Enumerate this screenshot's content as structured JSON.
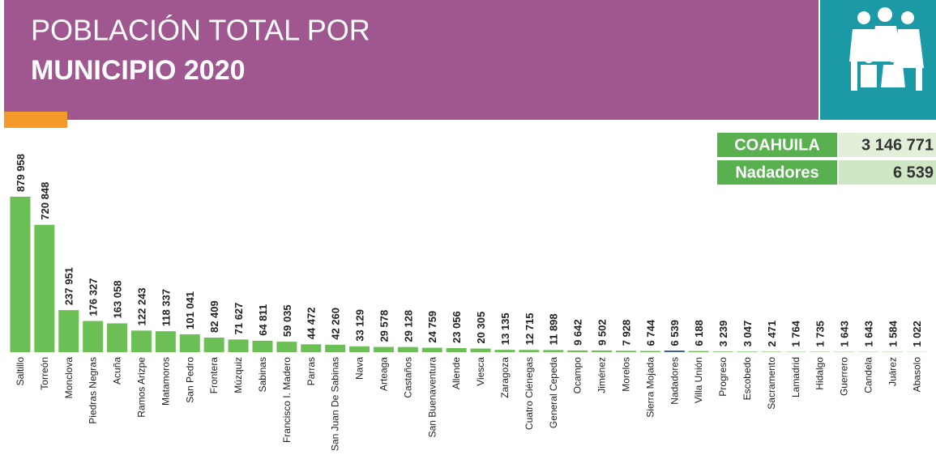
{
  "chart_data": {
    "type": "bar",
    "title": "POBLACIÓN TOTAL POR",
    "subtitle": "MUNICIPIO 2020",
    "summary": [
      {
        "label": "COAHUILA",
        "value": "3 146 771"
      },
      {
        "label": "Nadadores",
        "value": "6 539"
      }
    ],
    "highlight": "Nadadores",
    "color": "#6cbf55",
    "highlight_color": "#3b5ea6",
    "categories": [
      "Saltillo",
      "Torreón",
      "Monclova",
      "Piedras Negras",
      "Acuña",
      "Ramos Arizpe",
      "Matamoros",
      "San Pedro",
      "Frontera",
      "Múzquiz",
      "Sabinas",
      "Francisco I. Madero",
      "Parras",
      "San Juan De Sabinas",
      "Nava",
      "Arteaga",
      "Castaños",
      "San Buenaventura",
      "Allende",
      "Viesca",
      "Zaragoza",
      "Cuatro Ciénegas",
      "General Cepeda",
      "Ocampo",
      "Jiménez",
      "Morelos",
      "Sierra Mojada",
      "Nadadores",
      "Villa Unión",
      "Progreso",
      "Escobedo",
      "Sacramento",
      "Lamadrid",
      "Hidalgo",
      "Guerrero",
      "Candela",
      "Juárez",
      "Abasolo"
    ],
    "values": [
      879958,
      720848,
      237951,
      176327,
      163058,
      122243,
      118337,
      101041,
      82409,
      71627,
      64811,
      59035,
      44472,
      42260,
      33129,
      29578,
      29128,
      24759,
      23056,
      20305,
      13135,
      12715,
      11898,
      9642,
      9502,
      7928,
      6744,
      6539,
      6188,
      3239,
      3047,
      2471,
      1764,
      1735,
      1643,
      1643,
      1584,
      1022
    ],
    "value_labels": [
      "879 958",
      "720 848",
      "237 951",
      "176 327",
      "163 058",
      "122 243",
      "118 337",
      "101 041",
      "82 409",
      "71 627",
      "64 811",
      "59 035",
      "44 472",
      "42 260",
      "33 129",
      "29 578",
      "29 128",
      "24 759",
      "23 056",
      "20 305",
      "13 135",
      "12 715",
      "11 898",
      "9 642",
      "9 502",
      "7 928",
      "6 744",
      "6 539",
      "6 188",
      "3 239",
      "3 047",
      "2 471",
      "1 764",
      "1 735",
      "1 643",
      "1 643",
      "1 584",
      "1 022"
    ]
  }
}
